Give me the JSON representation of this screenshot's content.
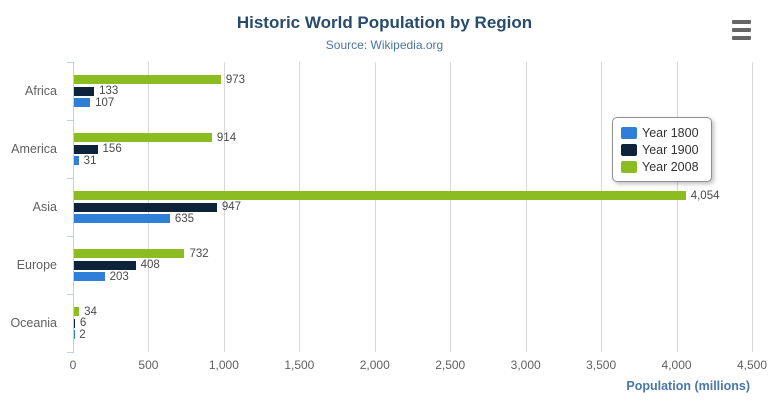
{
  "chart_data": {
    "type": "bar",
    "orientation": "horizontal",
    "title": "Historic World Population by Region",
    "subtitle": "Source: Wikipedia.org",
    "categories": [
      "Africa",
      "America",
      "Asia",
      "Europe",
      "Oceania"
    ],
    "series": [
      {
        "name": "Year 1800",
        "color": "#2f7ed8",
        "values": [
          107,
          31,
          635,
          203,
          2
        ]
      },
      {
        "name": "Year 1900",
        "color": "#0d233a",
        "values": [
          133,
          156,
          947,
          408,
          6
        ]
      },
      {
        "name": "Year 2008",
        "color": "#8bbc21",
        "values": [
          973,
          914,
          4054,
          732,
          34
        ]
      }
    ],
    "series_display_order_top_to_bottom": [
      "Year 2008",
      "Year 1900",
      "Year 1800"
    ],
    "data_labels": [
      "107",
      "31",
      "635",
      "203",
      "2",
      "133",
      "156",
      "947",
      "408",
      "6",
      "973",
      "914",
      "4,054",
      "732",
      "34"
    ],
    "xlabel": "Population (millions)",
    "ylabel": "",
    "xlim": [
      0,
      4500
    ],
    "x_tick_labels": [
      "0",
      "500",
      "1,000",
      "1,500",
      "2,000",
      "2,500",
      "3,000",
      "3,500",
      "4,000",
      "4,500"
    ],
    "grid": true,
    "legend": {
      "position": "top-right-floating",
      "entries": [
        {
          "label": "Year 1800",
          "color": "#2f7ed8"
        },
        {
          "label": "Year 1900",
          "color": "#0d233a"
        },
        {
          "label": "Year 2008",
          "color": "#8bbc21"
        }
      ]
    }
  },
  "toolbar": {
    "context_menu_icon": "hamburger-menu"
  },
  "palette": {
    "title_color": "#274b6d",
    "subtitle_color": "#4d759e",
    "axis_title_color": "#4a77a8",
    "axis_text_color": "#606060",
    "data_label_color": "#4a4a4a",
    "axis_line_color": "#c0d0e0",
    "grid_line_color": "#d8d8d8",
    "legend_border_color": "#909090",
    "menu_icon_color": "#666666",
    "background_color": "#ffffff"
  }
}
